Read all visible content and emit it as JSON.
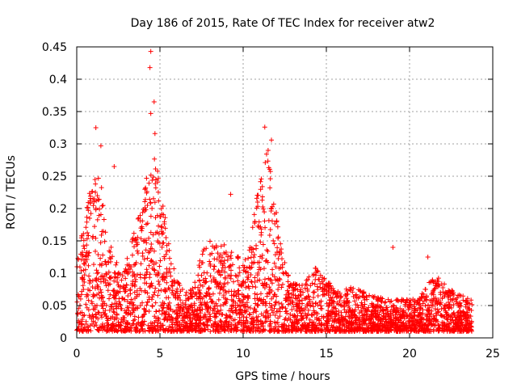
{
  "chart_data": {
    "type": "scatter",
    "title": "Day 186 of 2015, Rate Of TEC Index for receiver atw2",
    "xlabel": "GPS time / hours",
    "ylabel": "ROTI / TECUs",
    "xlim": [
      0,
      25
    ],
    "ylim": [
      0,
      0.45
    ],
    "x_ticks": [
      0,
      5,
      10,
      15,
      20,
      25
    ],
    "x_tick_labels": [
      "0",
      "5",
      "10",
      "15",
      "20",
      "25"
    ],
    "y_ticks": [
      0,
      0.05,
      0.1,
      0.15,
      0.2,
      0.25,
      0.3,
      0.35,
      0.4,
      0.45
    ],
    "y_tick_labels": [
      "0",
      "0.05",
      "0.1",
      "0.15",
      "0.2",
      "0.25",
      "0.3",
      "0.35",
      "0.4",
      "0.45"
    ],
    "grid": true,
    "marker": "+",
    "color": "#ff0000",
    "series": [
      {
        "name": "ROTI",
        "notable_points": [
          {
            "x": 4.45,
            "y": 0.443
          },
          {
            "x": 4.4,
            "y": 0.418
          },
          {
            "x": 4.65,
            "y": 0.365
          },
          {
            "x": 4.45,
            "y": 0.347
          },
          {
            "x": 1.15,
            "y": 0.325
          },
          {
            "x": 11.3,
            "y": 0.326
          },
          {
            "x": 4.7,
            "y": 0.316
          },
          {
            "x": 11.7,
            "y": 0.306
          },
          {
            "x": 1.45,
            "y": 0.297
          },
          {
            "x": 11.5,
            "y": 0.29
          },
          {
            "x": 2.25,
            "y": 0.265
          },
          {
            "x": 9.25,
            "y": 0.222
          },
          {
            "x": 19.0,
            "y": 0.14
          },
          {
            "x": 21.1,
            "y": 0.125
          }
        ],
        "envelope": [
          {
            "x": 0.0,
            "y": 0.12
          },
          {
            "x": 0.3,
            "y": 0.16
          },
          {
            "x": 0.7,
            "y": 0.22
          },
          {
            "x": 1.0,
            "y": 0.24
          },
          {
            "x": 1.4,
            "y": 0.26
          },
          {
            "x": 1.8,
            "y": 0.17
          },
          {
            "x": 2.2,
            "y": 0.13
          },
          {
            "x": 2.7,
            "y": 0.1
          },
          {
            "x": 3.2,
            "y": 0.14
          },
          {
            "x": 3.8,
            "y": 0.2
          },
          {
            "x": 4.3,
            "y": 0.26
          },
          {
            "x": 4.7,
            "y": 0.28
          },
          {
            "x": 5.2,
            "y": 0.22
          },
          {
            "x": 5.6,
            "y": 0.14
          },
          {
            "x": 6.0,
            "y": 0.09
          },
          {
            "x": 6.5,
            "y": 0.07
          },
          {
            "x": 7.0,
            "y": 0.08
          },
          {
            "x": 7.5,
            "y": 0.13
          },
          {
            "x": 8.0,
            "y": 0.16
          },
          {
            "x": 8.5,
            "y": 0.14
          },
          {
            "x": 9.0,
            "y": 0.15
          },
          {
            "x": 9.5,
            "y": 0.13
          },
          {
            "x": 10.0,
            "y": 0.12
          },
          {
            "x": 10.5,
            "y": 0.16
          },
          {
            "x": 11.0,
            "y": 0.26
          },
          {
            "x": 11.4,
            "y": 0.29
          },
          {
            "x": 11.8,
            "y": 0.25
          },
          {
            "x": 12.3,
            "y": 0.14
          },
          {
            "x": 12.8,
            "y": 0.09
          },
          {
            "x": 13.5,
            "y": 0.08
          },
          {
            "x": 14.3,
            "y": 0.11
          },
          {
            "x": 15.0,
            "y": 0.09
          },
          {
            "x": 15.8,
            "y": 0.07
          },
          {
            "x": 16.5,
            "y": 0.08
          },
          {
            "x": 17.5,
            "y": 0.07
          },
          {
            "x": 18.5,
            "y": 0.06
          },
          {
            "x": 19.5,
            "y": 0.06
          },
          {
            "x": 20.5,
            "y": 0.06
          },
          {
            "x": 21.0,
            "y": 0.08
          },
          {
            "x": 21.6,
            "y": 0.1
          },
          {
            "x": 22.2,
            "y": 0.08
          },
          {
            "x": 22.8,
            "y": 0.07
          },
          {
            "x": 23.7,
            "y": 0.06
          }
        ],
        "floor": 0.01,
        "x_end": 23.75
      }
    ]
  }
}
